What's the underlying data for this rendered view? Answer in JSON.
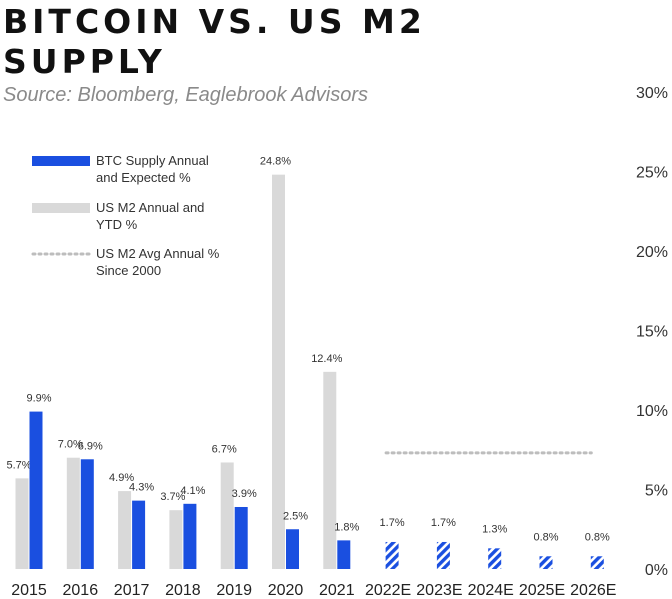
{
  "header": {
    "title": "BITCOIN VS. US M2 SUPPLY",
    "subtitle": "Source: Bloomberg, Eaglebrook Advisors"
  },
  "chart_data": {
    "type": "bar",
    "categories": [
      "2015",
      "2016",
      "2017",
      "2018",
      "2019",
      "2020",
      "2021",
      "2022E",
      "2023E",
      "2024E",
      "2025E",
      "2026E"
    ],
    "series": [
      {
        "name": "US M2 Annual and YTD %",
        "color": "#d9d9d9",
        "values": [
          5.7,
          7.0,
          4.9,
          3.7,
          6.7,
          24.8,
          12.4,
          null,
          null,
          null,
          null,
          null
        ],
        "labels": [
          "5.7%",
          "7.0%",
          "4.9%",
          "3.7%",
          "6.7%",
          "24.8%",
          "12.4%",
          "",
          "",
          "",
          "",
          ""
        ]
      },
      {
        "name": "BTC Supply Annual and Expected %",
        "color": "#1a4fe0",
        "values": [
          9.9,
          6.9,
          4.3,
          4.1,
          3.9,
          2.5,
          1.8,
          1.7,
          1.7,
          1.3,
          0.8,
          0.8
        ],
        "labels": [
          "9.9%",
          "6.9%",
          "4.3%",
          "4.1%",
          "3.9%",
          "2.5%",
          "1.8%",
          "1.7%",
          "1.7%",
          "1.3%",
          "0.8%",
          "0.8%"
        ],
        "expected_from_index": 7
      }
    ],
    "reference_line": {
      "name": "US M2 Avg Annual % Since 2000",
      "value": 7.3,
      "from_category": "2022E",
      "to_category": "2026E"
    },
    "legend": [
      {
        "line1": "BTC Supply Annual",
        "line2": "and Expected %",
        "swatch": "bar",
        "color": "#1a4fe0"
      },
      {
        "line1": "US M2 Annual and",
        "line2": "YTD %",
        "swatch": "bar",
        "color": "#d9d9d9"
      },
      {
        "line1": "US M2 Avg Annual %",
        "line2": "Since 2000",
        "swatch": "dotted",
        "color": "#bdbdbd"
      }
    ],
    "legend_placement": "top-left",
    "y_axis": {
      "position": "right",
      "ticks": [
        0,
        5,
        10,
        15,
        20,
        25,
        30
      ],
      "tick_labels": [
        "0%",
        "5%",
        "10%",
        "15%",
        "20%",
        "25%",
        "30%"
      ],
      "ylim": [
        0,
        30
      ]
    },
    "grid": false
  }
}
